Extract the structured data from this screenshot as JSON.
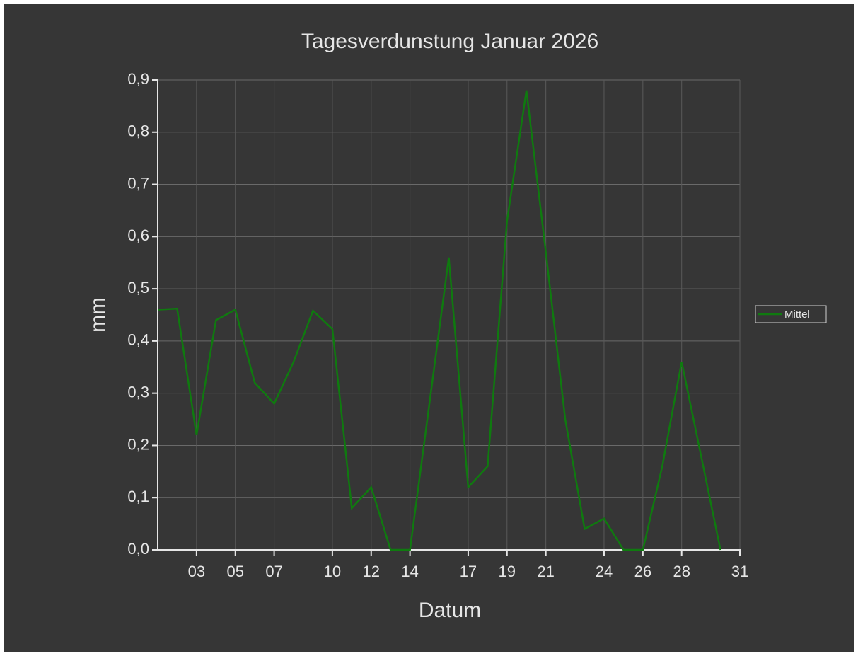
{
  "chart_data": {
    "type": "line",
    "title": "Tagesverdunstung Januar 2026",
    "x_label": "Datum",
    "y_label": "mm",
    "x": [
      1,
      2,
      3,
      4,
      5,
      6,
      7,
      8,
      9,
      10,
      11,
      12,
      13,
      14,
      15,
      16,
      17,
      18,
      19,
      20,
      21,
      22,
      23,
      24,
      25,
      26,
      27,
      28,
      29,
      30
    ],
    "series": [
      {
        "name": "Mittel",
        "color": "#0f7a0f",
        "values": [
          0.46,
          0.462,
          0.22,
          0.44,
          0.46,
          0.32,
          0.28,
          0.36,
          0.458,
          0.423,
          0.08,
          0.12,
          0,
          0,
          0.28,
          0.56,
          0.12,
          0.16,
          0.63,
          0.88,
          0.57,
          0.25,
          0.04,
          0.06,
          0,
          0,
          0.16,
          0.36,
          0.18,
          0
        ]
      }
    ],
    "xlim": [
      1,
      31
    ],
    "xticks": [
      {
        "value": 3,
        "label": "03"
      },
      {
        "value": 5,
        "label": "05"
      },
      {
        "value": 7,
        "label": "07"
      },
      10,
      12,
      14,
      17,
      19,
      21,
      24,
      26,
      28,
      31
    ],
    "ylim": [
      0,
      0.9
    ],
    "yticks": [
      {
        "value": 0,
        "label": "0,0"
      },
      {
        "value": 0.1,
        "label": "0,1"
      },
      {
        "value": 0.2,
        "label": "0,2"
      },
      {
        "value": 0.3,
        "label": "0,3"
      },
      {
        "value": 0.4,
        "label": "0,4"
      },
      {
        "value": 0.5,
        "label": "0,5"
      },
      {
        "value": 0.6,
        "label": "0,6"
      },
      {
        "value": 0.7,
        "label": "0,7"
      },
      {
        "value": 0.8,
        "label": "0,8"
      },
      {
        "value": 0.9,
        "label": "0,9"
      }
    ],
    "grid": true,
    "legend": "right"
  }
}
